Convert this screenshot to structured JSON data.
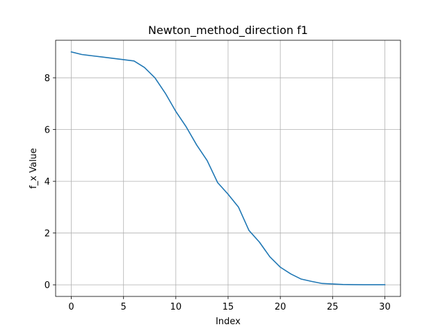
{
  "chart_data": {
    "type": "line",
    "title": "Newton_method_direction f1",
    "xlabel": "Index",
    "ylabel": "f_x Value",
    "xlim": [
      -1.5,
      31.5
    ],
    "ylim": [
      -0.45,
      9.45
    ],
    "xticks": [
      0,
      5,
      10,
      15,
      20,
      25,
      30
    ],
    "yticks": [
      0,
      2,
      4,
      6,
      8
    ],
    "grid": true,
    "line_color": "#1f77b4",
    "series": [
      {
        "x": [
          0,
          1,
          2,
          3,
          4,
          5,
          6,
          7,
          8,
          9,
          10,
          11,
          12,
          13,
          14,
          15,
          16,
          17,
          18,
          19,
          20,
          21,
          22,
          23,
          24,
          25,
          26,
          27,
          28,
          29,
          30
        ],
        "values": [
          9.0,
          8.9,
          8.85,
          8.8,
          8.75,
          8.7,
          8.65,
          8.4,
          8.0,
          7.4,
          6.7,
          6.1,
          5.4,
          4.8,
          3.95,
          3.5,
          3.0,
          2.1,
          1.65,
          1.08,
          0.68,
          0.42,
          0.22,
          0.13,
          0.05,
          0.03,
          0.01,
          0.005,
          0.002,
          0.001,
          0.0
        ]
      }
    ]
  }
}
